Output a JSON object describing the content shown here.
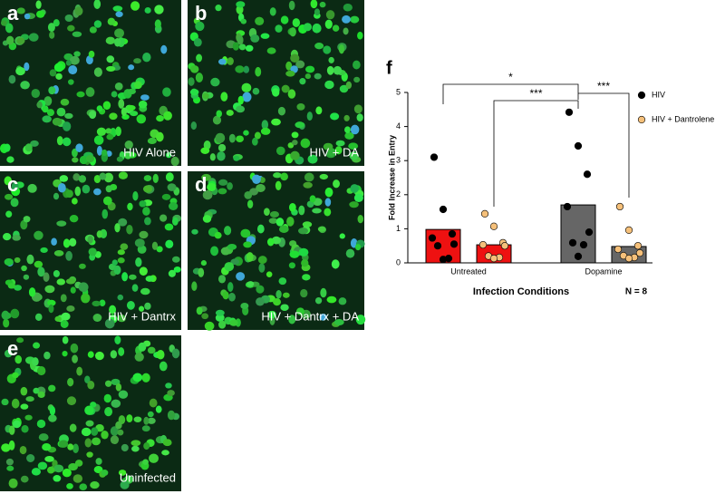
{
  "panels": [
    {
      "letter": "a",
      "caption": "HIV Alone"
    },
    {
      "letter": "b",
      "caption": "HIV + DA"
    },
    {
      "letter": "c",
      "caption": "HIV + Dantrx"
    },
    {
      "letter": "d",
      "caption": "HIV + Dantrx + DA"
    },
    {
      "letter": "e",
      "caption": "Uninfected"
    }
  ],
  "chart_data": {
    "type": "bar",
    "panel_letter": "f",
    "y_label": "Fold Increase in Entry",
    "x_label": "Infection Conditions",
    "note": "N = 8",
    "categories": [
      "Untreated",
      "Dopamine"
    ],
    "bar_colors": [
      "#ee1111",
      "#666666"
    ],
    "series": [
      {
        "name": "HIV",
        "color": "#000000",
        "values": [
          0.98,
          1.7
        ],
        "points": [
          [
            3.1,
            1.57,
            0.85,
            0.73,
            0.55,
            0.5,
            0.13,
            0.1
          ],
          [
            4.42,
            3.43,
            2.6,
            1.65,
            0.9,
            0.59,
            0.53,
            0.19
          ]
        ]
      },
      {
        "name": "HIV + Dantrolene",
        "color": "#f5c07a",
        "values": [
          0.53,
          0.48
        ],
        "points": [
          [
            1.44,
            1.07,
            0.59,
            0.53,
            0.5,
            0.2,
            0.16,
            0.13
          ],
          [
            1.65,
            0.96,
            0.5,
            0.4,
            0.29,
            0.21,
            0.16,
            0.13
          ]
        ]
      }
    ],
    "annotations": [
      "*",
      "***",
      "***"
    ],
    "ylim": [
      0,
      5
    ],
    "yticks": [
      0,
      1,
      2,
      3,
      4,
      5
    ]
  }
}
